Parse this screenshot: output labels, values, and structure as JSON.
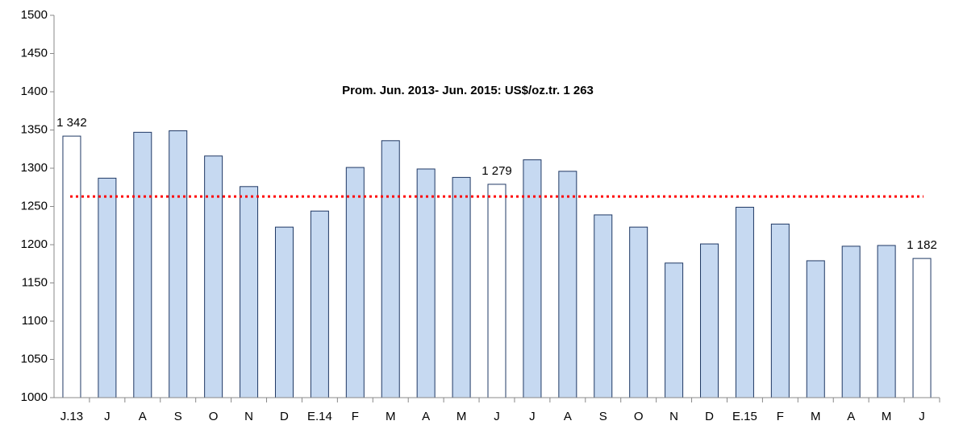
{
  "chart_data": {
    "type": "bar",
    "categories": [
      "J.13",
      "J",
      "A",
      "S",
      "O",
      "N",
      "D",
      "E.14",
      "F",
      "M",
      "A",
      "M",
      "J",
      "J",
      "A",
      "S",
      "O",
      "N",
      "D",
      "E.15",
      "F",
      "M",
      "A",
      "M",
      "J"
    ],
    "values": [
      1342,
      1287,
      1347,
      1349,
      1316,
      1276,
      1223,
      1244,
      1301,
      1336,
      1299,
      1288,
      1279,
      1311,
      1296,
      1239,
      1223,
      1176,
      1201,
      1249,
      1227,
      1179,
      1198,
      1199,
      1182
    ],
    "value_labels": [
      "1 342",
      null,
      null,
      null,
      null,
      null,
      null,
      null,
      null,
      null,
      null,
      null,
      "1 279",
      null,
      null,
      null,
      null,
      null,
      null,
      null,
      null,
      null,
      null,
      null,
      "1 182"
    ],
    "colors": [
      "#ffffff",
      "#c6d9f1",
      "#c6d9f1",
      "#c6d9f1",
      "#c6d9f1",
      "#c6d9f1",
      "#c6d9f1",
      "#c6d9f1",
      "#c6d9f1",
      "#c6d9f1",
      "#c6d9f1",
      "#c6d9f1",
      "#ffffff",
      "#c6d9f1",
      "#c6d9f1",
      "#c6d9f1",
      "#c6d9f1",
      "#c6d9f1",
      "#c6d9f1",
      "#c6d9f1",
      "#c6d9f1",
      "#c6d9f1",
      "#c6d9f1",
      "#c6d9f1",
      "#ffffff"
    ],
    "edge_color": "#1f3864",
    "ylim": [
      1000,
      1500
    ],
    "yticks": [
      1000,
      1050,
      1100,
      1150,
      1200,
      1250,
      1300,
      1350,
      1400,
      1450,
      1500
    ],
    "average": {
      "value": 1263,
      "label": "Prom. Jun. 2013- Jun. 2015: US$/oz.tr. 1 263",
      "color": "#ff0000"
    }
  }
}
